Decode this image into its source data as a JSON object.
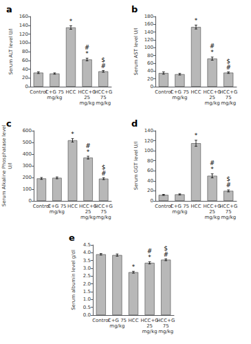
{
  "chart_data": [
    {
      "type": "bar",
      "title": "a",
      "ylabel": "Serum ALT level U/l",
      "categories": [
        "Control",
        "C+G 75\nmg/kg",
        "HCC",
        "HCC+G\n25\nmg/kg",
        "HCC+G\n75\nmg/kg"
      ],
      "values": [
        32,
        30,
        135,
        62,
        35
      ],
      "errors": [
        2,
        1.5,
        4,
        3,
        2
      ],
      "annotations": [
        {
          "category": "HCC",
          "lines": [
            "*"
          ]
        },
        {
          "category": "HCC+G\n25\nmg/kg",
          "lines": [
            "*",
            "#"
          ]
        },
        {
          "category": "HCC+G\n75\nmg/kg",
          "lines": [
            "#",
            "$"
          ]
        }
      ],
      "color": "#b8b8b8",
      "ylim": [
        0,
        160
      ],
      "yticks": [
        0,
        20,
        40,
        60,
        80,
        100,
        120,
        140,
        160
      ],
      "grid": false
    },
    {
      "type": "bar",
      "title": "b",
      "ylabel": "Serum AST level U/l",
      "categories": [
        "Control",
        "C+G 75\nmg/kg",
        "HCC",
        "HCC+G\n25\nmg/kg",
        "HCC+G\n75\nmg/kg"
      ],
      "values": [
        35,
        32,
        153,
        72,
        36
      ],
      "errors": [
        3,
        2,
        5,
        4,
        2
      ],
      "annotations": [
        {
          "category": "HCC",
          "lines": [
            "*"
          ]
        },
        {
          "category": "HCC+G\n25\nmg/kg",
          "lines": [
            "*",
            "#"
          ]
        },
        {
          "category": "HCC+G\n75\nmg/kg",
          "lines": [
            "#",
            "$"
          ]
        }
      ],
      "color": "#b8b8b8",
      "ylim": [
        0,
        180
      ],
      "yticks": [
        0,
        20,
        40,
        60,
        80,
        100,
        120,
        140,
        160,
        180
      ],
      "grid": false
    },
    {
      "type": "bar",
      "title": "c",
      "ylabel": "Serum Alkaline Phosphatase level\nU/l",
      "categories": [
        "Control",
        "C+G 75\nmg/kg",
        "HCC",
        "HCC+G\n25\nmg/kg",
        "HCC+G\n75\nmg/kg"
      ],
      "values": [
        192,
        197,
        518,
        370,
        190
      ],
      "errors": [
        8,
        8,
        15,
        12,
        8
      ],
      "annotations": [
        {
          "category": "HCC",
          "lines": [
            "*"
          ]
        },
        {
          "category": "HCC+G\n25\nmg/kg",
          "lines": [
            "*",
            "#"
          ]
        },
        {
          "category": "HCC+G\n75\nmg/kg",
          "lines": [
            "#",
            "$"
          ]
        }
      ],
      "color": "#b8b8b8",
      "ylim": [
        0,
        600
      ],
      "yticks": [
        0,
        100,
        200,
        300,
        400,
        500,
        600
      ],
      "grid": false
    },
    {
      "type": "bar",
      "title": "d",
      "ylabel": "Serum GGT level U/l",
      "categories": [
        "Control",
        "C+G 75\nmg/kg",
        "HCC",
        "HCC+G\n25\nmg/kg",
        "HCC+G\n75\nmg/kg"
      ],
      "values": [
        12,
        13,
        115,
        50,
        20
      ],
      "errors": [
        1,
        1,
        6,
        4,
        2
      ],
      "annotations": [
        {
          "category": "HCC",
          "lines": [
            "*"
          ]
        },
        {
          "category": "HCC+G\n25\nmg/kg",
          "lines": [
            "*",
            "#"
          ]
        },
        {
          "category": "HCC+G\n75\nmg/kg",
          "lines": [
            "#",
            "$"
          ]
        }
      ],
      "color": "#b8b8b8",
      "ylim": [
        0,
        140
      ],
      "yticks": [
        0,
        20,
        40,
        60,
        80,
        100,
        120,
        140
      ],
      "grid": false
    },
    {
      "type": "bar",
      "title": "e",
      "ylabel": "Serum albumin level g/dl",
      "categories": [
        "Control",
        "C+G 75\nmg/kg",
        "HCC",
        "HCC+G\n25\nmg/kg",
        "HCC+G\n75\nmg/kg"
      ],
      "values": [
        3.9,
        3.85,
        2.75,
        3.35,
        3.55
      ],
      "errors": [
        0.05,
        0.07,
        0.06,
        0.07,
        0.06
      ],
      "annotations": [
        {
          "category": "HCC",
          "lines": [
            "*"
          ]
        },
        {
          "category": "HCC+G\n25\nmg/kg",
          "lines": [
            "*",
            "#"
          ]
        },
        {
          "category": "HCC+G\n75\nmg/kg",
          "lines": [
            "#",
            "$"
          ]
        }
      ],
      "color": "#b8b8b8",
      "ylim": [
        0,
        4.5
      ],
      "yticks": [
        {
          "value": 0,
          "label": "0.0"
        },
        0.5,
        {
          "value": 1,
          "label": "1.0"
        },
        1.5,
        {
          "value": 2,
          "label": "2.0"
        },
        2.5,
        {
          "value": 3,
          "label": "3.0"
        },
        3.5,
        {
          "value": 4,
          "label": "4.0"
        },
        4.5
      ],
      "grid": false
    }
  ]
}
